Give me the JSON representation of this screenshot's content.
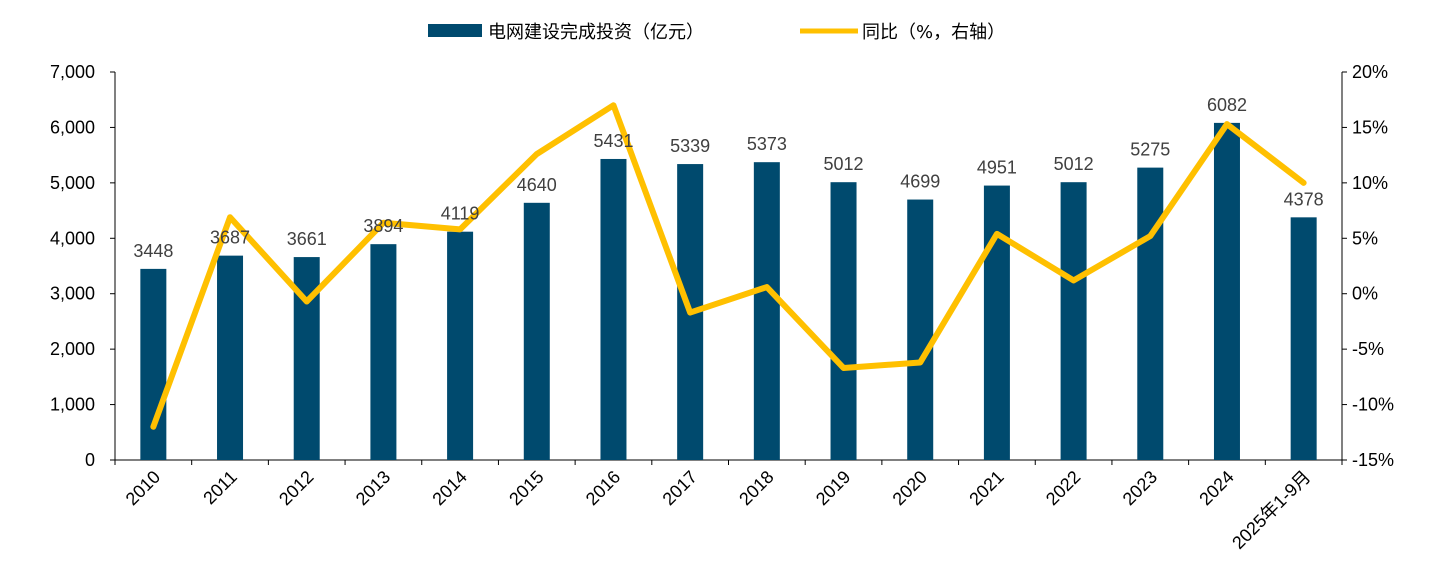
{
  "chart_data": {
    "type": "bar+line",
    "categories": [
      "2010",
      "2011",
      "2012",
      "2013",
      "2014",
      "2015",
      "2016",
      "2017",
      "2018",
      "2019",
      "2020",
      "2021",
      "2022",
      "2023",
      "2024",
      "2025年1-9月"
    ],
    "series": [
      {
        "name": "电网建设完成投资（亿元）",
        "type": "bar",
        "axis": "left",
        "color": "#004A6E",
        "values": [
          3448,
          3687,
          3661,
          3894,
          4119,
          4640,
          5431,
          5339,
          5373,
          5012,
          4699,
          4951,
          5012,
          5275,
          6082,
          4378
        ]
      },
      {
        "name": "同比（%，右轴）",
        "type": "line",
        "axis": "right",
        "color": "#FFC000",
        "values": [
          -12.0,
          6.9,
          -0.7,
          6.4,
          5.8,
          12.6,
          17.0,
          -1.7,
          0.6,
          -6.7,
          -6.2,
          5.4,
          1.2,
          5.2,
          15.3,
          10.0
        ]
      }
    ],
    "y_left": {
      "min": 0,
      "max": 7000,
      "step": 1000,
      "tick_labels": [
        "0",
        "1,000",
        "2,000",
        "3,000",
        "4,000",
        "5,000",
        "6,000",
        "7,000"
      ]
    },
    "y_right": {
      "min": -15,
      "max": 20,
      "step": 5,
      "tick_labels": [
        "-15%",
        "-10%",
        "-5%",
        "0%",
        "5%",
        "10%",
        "15%",
        "20%"
      ]
    },
    "data_labels": [
      "3448",
      "3687",
      "3661",
      "3894",
      "4119",
      "4640",
      "5431",
      "5339",
      "5373",
      "5012",
      "4699",
      "4951",
      "5012",
      "5275",
      "6082",
      "4378"
    ],
    "legend_position": "top-center",
    "grid": false
  }
}
